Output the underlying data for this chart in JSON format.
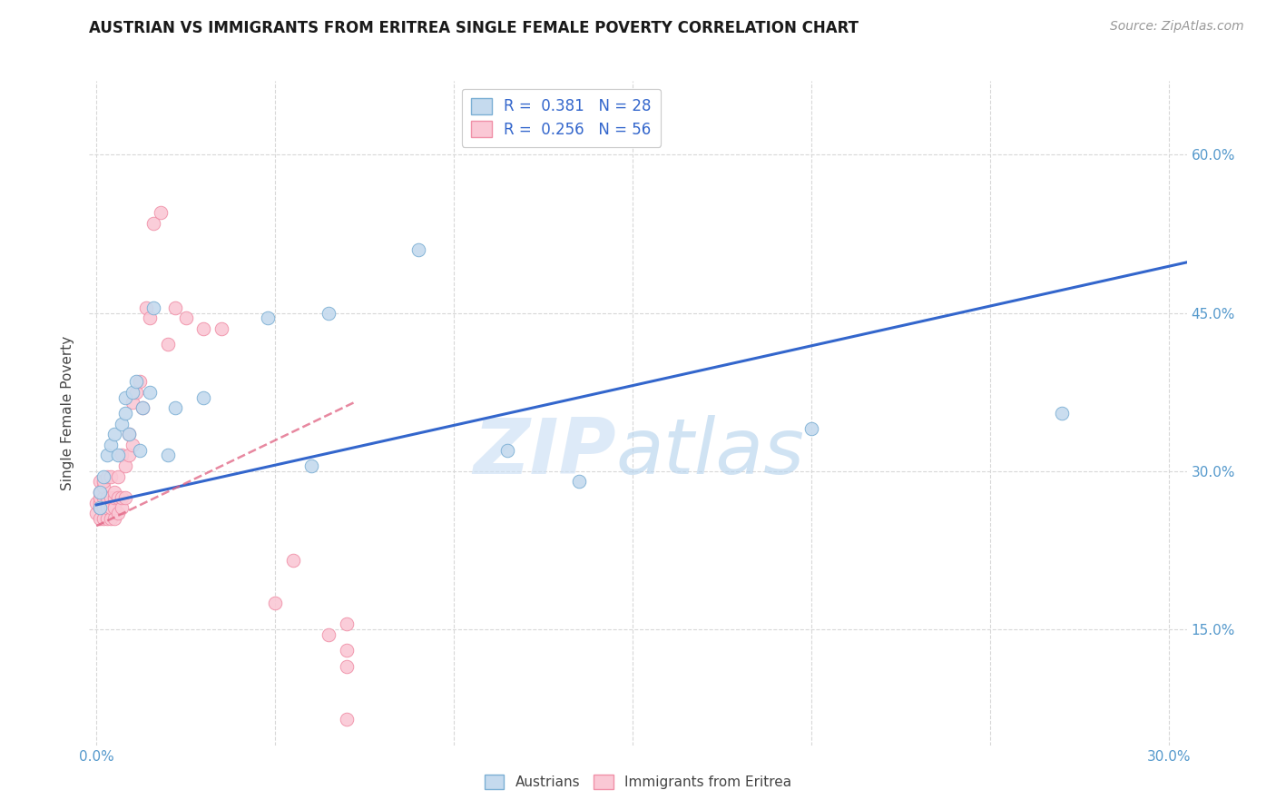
{
  "title": "AUSTRIAN VS IMMIGRANTS FROM ERITREA SINGLE FEMALE POVERTY CORRELATION CHART",
  "source": "Source: ZipAtlas.com",
  "ylabel": "Single Female Poverty",
  "x_ticks": [
    0.0,
    0.05,
    0.1,
    0.15,
    0.2,
    0.25,
    0.3
  ],
  "x_tick_labels": [
    "0.0%",
    "",
    "",
    "",
    "",
    "",
    "30.0%"
  ],
  "y_ticks": [
    0.15,
    0.3,
    0.45,
    0.6
  ],
  "y_tick_labels": [
    "15.0%",
    "30.0%",
    "45.0%",
    "60.0%"
  ],
  "xlim": [
    -0.002,
    0.305
  ],
  "ylim": [
    0.04,
    0.67
  ],
  "legend_labels": [
    "Austrians",
    "Immigrants from Eritrea"
  ],
  "watermark_zip": "ZIP",
  "watermark_atlas": "atlas",
  "blue_color": "#7bafd4",
  "pink_color": "#f090a8",
  "blue_fill": "#c5daee",
  "pink_fill": "#fac8d5",
  "trend_blue_color": "#3366cc",
  "trend_pink_color": "#e06080",
  "grid_color": "#d8d8d8",
  "blue_scatter_x": [
    0.001,
    0.001,
    0.002,
    0.003,
    0.004,
    0.005,
    0.006,
    0.007,
    0.008,
    0.008,
    0.009,
    0.01,
    0.011,
    0.012,
    0.013,
    0.015,
    0.016,
    0.02,
    0.022,
    0.03,
    0.048,
    0.06,
    0.065,
    0.09,
    0.115,
    0.135,
    0.2,
    0.27
  ],
  "blue_scatter_y": [
    0.265,
    0.28,
    0.295,
    0.315,
    0.325,
    0.335,
    0.315,
    0.345,
    0.355,
    0.37,
    0.335,
    0.375,
    0.385,
    0.32,
    0.36,
    0.375,
    0.455,
    0.315,
    0.36,
    0.37,
    0.445,
    0.305,
    0.45,
    0.51,
    0.32,
    0.29,
    0.34,
    0.355
  ],
  "pink_scatter_x": [
    0.0,
    0.0,
    0.001,
    0.001,
    0.001,
    0.001,
    0.001,
    0.001,
    0.002,
    0.002,
    0.002,
    0.002,
    0.002,
    0.003,
    0.003,
    0.003,
    0.003,
    0.004,
    0.004,
    0.004,
    0.004,
    0.005,
    0.005,
    0.005,
    0.005,
    0.006,
    0.006,
    0.006,
    0.007,
    0.007,
    0.007,
    0.008,
    0.008,
    0.009,
    0.009,
    0.01,
    0.01,
    0.011,
    0.012,
    0.013,
    0.014,
    0.015,
    0.016,
    0.018,
    0.02,
    0.022,
    0.025,
    0.03,
    0.035,
    0.05,
    0.055,
    0.065,
    0.07,
    0.07,
    0.07,
    0.07
  ],
  "pink_scatter_y": [
    0.26,
    0.27,
    0.255,
    0.265,
    0.27,
    0.275,
    0.28,
    0.29,
    0.255,
    0.265,
    0.275,
    0.285,
    0.29,
    0.255,
    0.265,
    0.275,
    0.295,
    0.255,
    0.265,
    0.275,
    0.295,
    0.255,
    0.265,
    0.275,
    0.28,
    0.26,
    0.275,
    0.295,
    0.265,
    0.275,
    0.315,
    0.275,
    0.305,
    0.315,
    0.335,
    0.325,
    0.365,
    0.375,
    0.385,
    0.36,
    0.455,
    0.445,
    0.535,
    0.545,
    0.42,
    0.455,
    0.445,
    0.435,
    0.435,
    0.175,
    0.215,
    0.145,
    0.115,
    0.13,
    0.155,
    0.065
  ],
  "blue_trend_x": [
    0.0,
    0.305
  ],
  "blue_trend_y": [
    0.268,
    0.498
  ],
  "pink_trend_x": [
    0.0,
    0.072
  ],
  "pink_trend_y": [
    0.248,
    0.365
  ]
}
